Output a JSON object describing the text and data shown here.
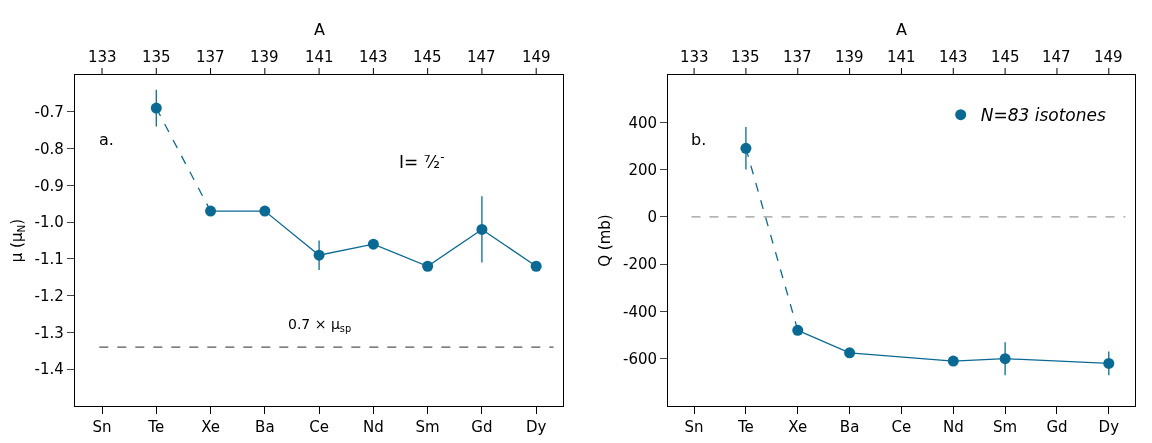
{
  "chart_data": [
    {
      "type": "scatter",
      "ylabel": "μ (μ$_{N}$)",
      "x2label": "A",
      "marker": "circle",
      "grid": false,
      "legend": false,
      "categories": [
        "Sn",
        "Te",
        "Xe",
        "Ba",
        "Ce",
        "Nd",
        "Sm",
        "Gd",
        "Dy"
      ],
      "ylim": [
        -1.5,
        -0.6
      ],
      "x2lim": [
        132,
        150
      ],
      "x2ticks": [
        133,
        135,
        137,
        139,
        141,
        143,
        145,
        147,
        149
      ],
      "yticks": [
        -0.7,
        -0.8,
        -0.9,
        {
          "value": -1.0,
          "label": "-1.0"
        },
        -1.1,
        -1.2,
        -1.3,
        -1.4
      ],
      "series": [
        {
          "color": "#0b6a94",
          "x": [
            "Te",
            "Xe",
            "Ba",
            "Ce",
            "Nd",
            "Sm",
            "Gd",
            "Dy"
          ],
          "values": [
            -0.69,
            -0.97,
            -0.97,
            -1.09,
            -1.06,
            -1.12,
            -1.02,
            -1.12
          ],
          "errors": [
            0.05,
            null,
            null,
            0.04,
            null,
            null,
            0.09,
            null
          ]
        },
        {
          "type": "line",
          "color": "#0b6a94",
          "line_style": "dashed",
          "marker": "none",
          "x": [
            "Te",
            "Xe"
          ],
          "values": [
            -0.69,
            -0.97
          ]
        },
        {
          "type": "line",
          "color": "#0b6a94",
          "line_style": "solid",
          "marker": "none",
          "x": [
            "Xe",
            "Ba",
            "Ce",
            "Nd",
            "Sm",
            "Gd",
            "Dy"
          ],
          "values": [
            -0.97,
            -0.97,
            -1.09,
            -1.06,
            -1.12,
            -1.02,
            -1.12
          ]
        }
      ],
      "ref_lines": [
        {
          "axis": "y",
          "value": -1.34,
          "label": "0.7 × μ$_{sp}$",
          "color": "#555555",
          "line_style": "dashed"
        }
      ],
      "annotations": [
        "a.",
        "I= ⁷⁄₂$^{-}$"
      ]
    },
    {
      "type": "scatter",
      "ylabel": "Q (mb)",
      "x2label": "A",
      "marker": "circle",
      "grid": false,
      "legend": "top right",
      "categories": [
        "Sn",
        "Te",
        "Xe",
        "Ba",
        "Ce",
        "Nd",
        "Sm",
        "Gd",
        "Dy"
      ],
      "ylim": [
        -800,
        600
      ],
      "x2lim": [
        132,
        150
      ],
      "x2ticks": [
        133,
        135,
        137,
        139,
        141,
        143,
        145,
        147,
        149
      ],
      "yticks": [
        400,
        200,
        0,
        -200,
        -400,
        -600
      ],
      "series": [
        {
          "name": "N=83 isotones",
          "color": "#0b6a94",
          "x": [
            "Te",
            "Xe",
            "Ba",
            "Nd",
            "Sm",
            "Dy"
          ],
          "values": [
            290,
            -480,
            -575,
            -610,
            -600,
            -620
          ],
          "errors": [
            90,
            null,
            null,
            null,
            70,
            50
          ]
        },
        {
          "type": "line",
          "color": "#0b6a94",
          "line_style": "dashed",
          "marker": "none",
          "x": [
            "Te",
            "Xe"
          ],
          "values": [
            290,
            -480
          ]
        },
        {
          "type": "line",
          "color": "#0b6a94",
          "line_style": "solid",
          "marker": "none",
          "x": [
            "Xe",
            "Ba",
            "Nd",
            "Sm",
            "Dy"
          ],
          "values": [
            -480,
            -575,
            -610,
            -600,
            -620
          ]
        }
      ],
      "ref_lines": [
        {
          "axis": "y",
          "value": 0,
          "color": "#999999",
          "line_style": "dashed"
        }
      ],
      "annotations": [
        "b."
      ]
    }
  ]
}
